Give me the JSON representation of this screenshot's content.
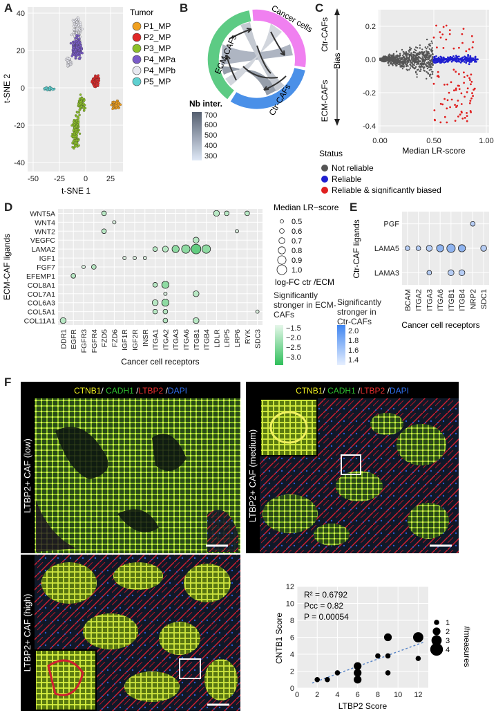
{
  "panel_labels": {
    "A": "A",
    "B": "B",
    "C": "C",
    "D": "D",
    "E": "E",
    "F": "F"
  },
  "panel_a": {
    "legend_title": "Tumor",
    "legend": [
      {
        "label": "P1_MP",
        "color": "#f0a020"
      },
      {
        "label": "P2_MP",
        "color": "#e02828"
      },
      {
        "label": "P3_MP",
        "color": "#8cc028"
      },
      {
        "label": "P4_MPa",
        "color": "#7a5cc8"
      },
      {
        "label": "P4_MPb",
        "color": "#e8e8f0"
      },
      {
        "label": "P5_MP",
        "color": "#5fd0d0"
      }
    ],
    "xlabel": "t-SNE 1",
    "ylabel": "t-SNE 2",
    "xticks": [
      "-50",
      "-25",
      "0",
      "25"
    ],
    "yticks": [
      "40",
      "20",
      "0",
      "-20",
      "-40"
    ]
  },
  "panel_b": {
    "segments": [
      {
        "label": "ECM-CAFs",
        "color": "#5dcb84"
      },
      {
        "label": "Cancer cells",
        "color": "#f080f0"
      },
      {
        "label": "Ctr-CAFs",
        "color": "#4a90e8"
      }
    ],
    "legend_title": "Nb inter.",
    "legend_ticks": [
      "700",
      "600",
      "500",
      "400",
      "300"
    ]
  },
  "panel_c": {
    "ylabel": "Bias",
    "ylabel_top": "Ctr-CAFs",
    "ylabel_bottom": "ECM-CAFs",
    "xlabel": "Median LR-score",
    "xticks": [
      "0.00",
      "0.50",
      "1.00"
    ],
    "yticks": [
      "0.2",
      "0.0",
      "-0.2",
      "-0.4"
    ],
    "status_title": "Status",
    "status": [
      {
        "label": "Not reliable",
        "color": "#555555"
      },
      {
        "label": "Reliable",
        "color": "#2020d0"
      },
      {
        "label": "Reliable & significantly biased",
        "color": "#e02020"
      }
    ]
  },
  "panel_d": {
    "ylabel": "ECM-CAF ligands",
    "xlabel": "Cancer cell receptors",
    "ligands": [
      "WNT5A",
      "WNT4",
      "WNT2",
      "VEGFC",
      "LAMA2",
      "IGF1",
      "FGF7",
      "EFEMP1",
      "COL8A1",
      "COL7A1",
      "COL6A3",
      "COL5A1",
      "COL11A1"
    ],
    "receptors": [
      "DDR1",
      "EGFR",
      "FGFR3",
      "FGFR4",
      "FZD5",
      "FZD6",
      "IGF1R",
      "IGF2R",
      "INSR",
      "ITGA1",
      "ITGA2",
      "ITGA3",
      "ITGA6",
      "ITGB1",
      "ITGB4",
      "LDLR",
      "LRP5",
      "LRP6",
      "RYK",
      "SDC3"
    ],
    "size_legend_title": "Median LR−score",
    "size_legend": [
      "0.5",
      "0.6",
      "0.7",
      "0.8",
      "0.9",
      "1.0"
    ],
    "color_legend_title": "log-FC ctr /ECM",
    "ecm_label": "Significantly stronger in ECM-CAFs",
    "ctr_label": "Significantly stronger in Ctr-CAFs",
    "ecm_ticks": [
      "−1.5",
      "−2.0",
      "−2.5",
      "−3.0"
    ],
    "ctr_ticks": [
      "2.0",
      "1.8",
      "1.6",
      "1.4"
    ]
  },
  "panel_e": {
    "ylabel": "Ctr-CAF ligands",
    "xlabel": "Cancer cell receptors",
    "ligands": [
      "PGF",
      "LAMA5",
      "LAMA3"
    ],
    "receptors": [
      "BCAM",
      "ITGA2",
      "ITGA3",
      "ITGA6",
      "ITGB1",
      "ITGB4",
      "NRP2",
      "SDC1"
    ]
  },
  "panel_f": {
    "stain": [
      {
        "label": "CTNB1",
        "color": "#f0f020"
      },
      {
        "label": "/ ",
        "color": "#ffffff"
      },
      {
        "label": "CADH1",
        "color": "#30c030"
      },
      {
        "label": " /",
        "color": "#ffffff"
      },
      {
        "label": "LTBP2",
        "color": "#f03030"
      },
      {
        "label": " /",
        "color": "#ffffff"
      },
      {
        "label": "DAPI",
        "color": "#3070f0"
      }
    ],
    "side_low": "LTBP2+ CAF (low)",
    "side_medium": "LTBP2+ CAF (medium)",
    "side_high": "LTBP2+ CAF (high)"
  },
  "chart_data": [
    {
      "type": "scatter",
      "title": "",
      "xlabel": "LTBP2 Score",
      "ylabel": "CNTB1 Score",
      "xlim": [
        0,
        13
      ],
      "ylim": [
        0,
        12
      ],
      "xticks": [
        0,
        2,
        4,
        6,
        8,
        10,
        12
      ],
      "yticks": [
        0,
        2,
        4,
        6,
        8,
        10,
        12
      ],
      "annotations": [
        "R² = 0.6792",
        "Pcc  = 0.82",
        "P = 0.00054"
      ],
      "size_legend_title": "#measures",
      "size_legend": [
        "1",
        "2",
        "3",
        "4"
      ],
      "points": [
        {
          "x": 2,
          "y": 1,
          "n": 1
        },
        {
          "x": 3,
          "y": 1,
          "n": 1
        },
        {
          "x": 4,
          "y": 1.8,
          "n": 1
        },
        {
          "x": 6,
          "y": 1,
          "n": 2
        },
        {
          "x": 6,
          "y": 1.8,
          "n": 2
        },
        {
          "x": 6,
          "y": 2.6,
          "n": 2
        },
        {
          "x": 8,
          "y": 3.8,
          "n": 1
        },
        {
          "x": 9,
          "y": 1.8,
          "n": 1
        },
        {
          "x": 9,
          "y": 3.8,
          "n": 1
        },
        {
          "x": 9,
          "y": 6,
          "n": 2
        },
        {
          "x": 12,
          "y": 6,
          "n": 3
        },
        {
          "x": 12,
          "y": 3.5,
          "n": 1
        }
      ],
      "fit": {
        "x": [
          1.5,
          12.5
        ],
        "y": [
          0.6,
          5.4
        ]
      }
    },
    {
      "type": "scatter",
      "title": "Panel D",
      "xlabel": "Cancer cell receptors",
      "ylabel": "ECM-CAF ligands",
      "points": [
        {
          "lig": "WNT5A",
          "rec": "FZD5",
          "s": 0.6
        },
        {
          "lig": "WNT5A",
          "rec": "LDLR",
          "s": 0.7
        },
        {
          "lig": "WNT5A",
          "rec": "LRP5",
          "s": 0.6
        },
        {
          "lig": "WNT5A",
          "rec": "RYK",
          "s": 0.6
        },
        {
          "lig": "WNT4",
          "rec": "FZD6",
          "s": 0.5
        },
        {
          "lig": "WNT2",
          "rec": "FZD5",
          "s": 0.6
        },
        {
          "lig": "WNT2",
          "rec": "LRP6",
          "s": 0.5
        },
        {
          "lig": "VEGFC",
          "rec": "ITGB1",
          "s": 0.7
        },
        {
          "lig": "LAMA2",
          "rec": "ITGA1",
          "s": 0.6
        },
        {
          "lig": "LAMA2",
          "rec": "ITGA2",
          "s": 0.7
        },
        {
          "lig": "LAMA2",
          "rec": "ITGA3",
          "s": 0.8
        },
        {
          "lig": "LAMA2",
          "rec": "ITGA6",
          "s": 0.9
        },
        {
          "lig": "LAMA2",
          "rec": "ITGB1",
          "s": 1.0
        },
        {
          "lig": "LAMA2",
          "rec": "ITGB4",
          "s": 0.9
        },
        {
          "lig": "IGF1",
          "rec": "IGF1R",
          "s": 0.5
        },
        {
          "lig": "IGF1",
          "rec": "IGF2R",
          "s": 0.5
        },
        {
          "lig": "IGF1",
          "rec": "INSR",
          "s": 0.5
        },
        {
          "lig": "FGF7",
          "rec": "FGFR3",
          "s": 0.5
        },
        {
          "lig": "FGF7",
          "rec": "FGFR4",
          "s": 0.6
        },
        {
          "lig": "EFEMP1",
          "rec": "EGFR",
          "s": 0.6
        },
        {
          "lig": "COL8A1",
          "rec": "ITGA1",
          "s": 0.6
        },
        {
          "lig": "COL8A1",
          "rec": "ITGA2",
          "s": 0.8
        },
        {
          "lig": "COL7A1",
          "rec": "ITGA2",
          "s": 0.5
        },
        {
          "lig": "COL7A1",
          "rec": "ITGB1",
          "s": 0.7
        },
        {
          "lig": "COL6A3",
          "rec": "ITGA1",
          "s": 0.7
        },
        {
          "lig": "COL6A3",
          "rec": "ITGA2",
          "s": 0.8
        },
        {
          "lig": "COL5A1",
          "rec": "ITGA1",
          "s": 0.6
        },
        {
          "lig": "COL5A1",
          "rec": "ITGA2",
          "s": 0.6
        },
        {
          "lig": "COL5A1",
          "rec": "SDC3",
          "s": 0.5
        },
        {
          "lig": "COL11A1",
          "rec": "DDR1",
          "s": 0.7
        },
        {
          "lig": "COL11A1",
          "rec": "ITGA2",
          "s": 0.6
        },
        {
          "lig": "COL11A1",
          "rec": "ITGB1",
          "s": 0.7
        }
      ]
    },
    {
      "type": "scatter",
      "title": "Panel E",
      "xlabel": "Cancer cell receptors",
      "ylabel": "Ctr-CAF ligands",
      "points": [
        {
          "lig": "PGF",
          "rec": "NRP2",
          "s": 0.6
        },
        {
          "lig": "LAMA5",
          "rec": "BCAM",
          "s": 0.6
        },
        {
          "lig": "LAMA5",
          "rec": "ITGA2",
          "s": 0.6
        },
        {
          "lig": "LAMA5",
          "rec": "ITGA3",
          "s": 0.7
        },
        {
          "lig": "LAMA5",
          "rec": "ITGA6",
          "s": 0.8
        },
        {
          "lig": "LAMA5",
          "rec": "ITGB1",
          "s": 0.9
        },
        {
          "lig": "LAMA5",
          "rec": "ITGB4",
          "s": 0.8
        },
        {
          "lig": "LAMA5",
          "rec": "SDC1",
          "s": 0.7
        },
        {
          "lig": "LAMA3",
          "rec": "ITGA3",
          "s": 0.6
        },
        {
          "lig": "LAMA3",
          "rec": "ITGB1",
          "s": 0.7
        },
        {
          "lig": "LAMA3",
          "rec": "ITGB4",
          "s": 0.7
        }
      ]
    }
  ]
}
